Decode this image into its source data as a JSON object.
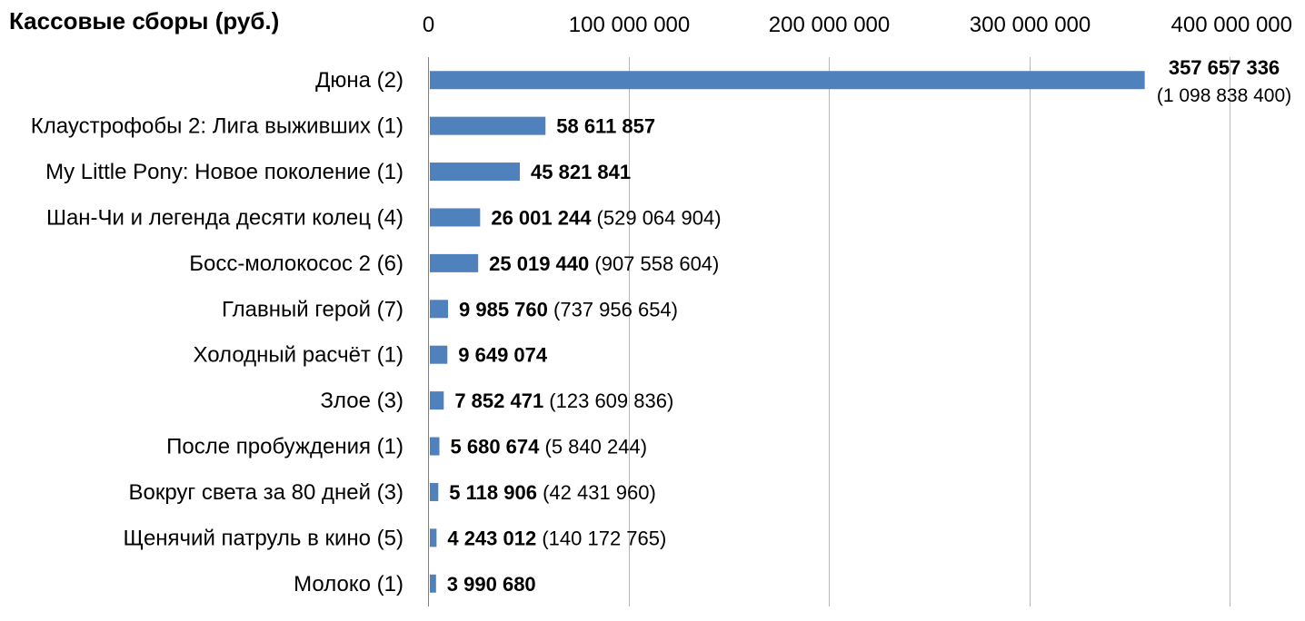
{
  "chart_data": {
    "type": "bar",
    "orientation": "horizontal",
    "title": "Кассовые сборы (руб.)",
    "xlim": [
      0,
      400000000
    ],
    "x_ticks": [
      0,
      100000000,
      200000000,
      300000000,
      400000000
    ],
    "x_tick_labels": [
      "0",
      "100 000 000",
      "200 000 000",
      "300 000 000",
      "400 000 000"
    ],
    "x_axis_position": "top",
    "grid": true,
    "legend": "none",
    "bar_color": "#4F81BD",
    "categories": [
      "Дюна (2)",
      "Клаустрофобы 2: Лига выживших (1)",
      "My Little Pony: Новое поколение (1)",
      "Шан-Чи и легенда десяти колец (4)",
      "Босс-молокосос 2 (6)",
      "Главный герой (7)",
      "Холодный расчёт (1)",
      "Злое (3)",
      "После пробуждения (1)",
      "Вокруг света за 80 дней (3)",
      "Щенячий патруль в кино (5)",
      "Молоко (1)"
    ],
    "values": [
      357657336,
      58611857,
      45821841,
      26001244,
      25019440,
      9985760,
      9649074,
      7852471,
      5680674,
      5118906,
      4243012,
      3990680
    ],
    "value_labels": [
      "357 657 336",
      "58 611 857",
      "45 821 841",
      "26 001 244",
      "25 019 440",
      "9 985 760",
      "9 649 074",
      "7 852 471",
      "5 680 674",
      "5 118 906",
      "4 243 012",
      "3 990 680"
    ],
    "total_labels": [
      "(1 098 838 400)",
      "",
      "",
      "(529 064 904)",
      "(907 558 604)",
      "(737 956 654)",
      "",
      "(123 609 836)",
      "(5 840 244)",
      "(42 431 960)",
      "(140 172 765)",
      ""
    ]
  }
}
